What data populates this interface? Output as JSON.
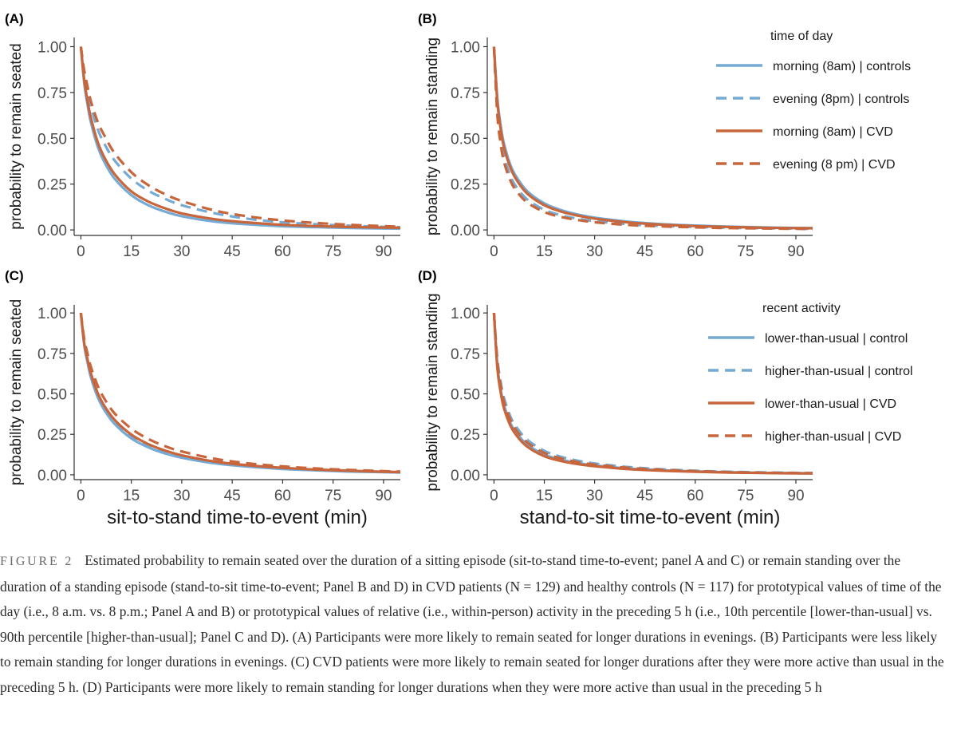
{
  "figure_label": "FIGURE 2",
  "caption": "Estimated probability to remain seated over the duration of a sitting episode (sit-to-stand time-to-event; panel A and C) or remain standing over the duration of a standing episode (stand-to-sit time-to-event; Panel B and D) in CVD patients (N = 129) and healthy controls (N = 117) for prototypical values of time of the day (i.e., 8 a.m. vs. 8 p.m.; Panel A and B) or prototypical values of relative (i.e., within-person) activity in the preceding 5 h (i.e., 10th percentile [lower-than-usual] vs. 90th percentile [higher-than-usual]; Panel C and D). (A) Participants were more likely to remain seated for longer durations in evenings. (B) Participants were less likely to remain standing for longer durations in evenings. (C) CVD patients were more likely to remain seated for longer durations after they were more active than usual in the preceding 5 h. (D) Participants were more likely to remain standing for longer durations when they were more active than usual in the preceding 5 h",
  "colors": {
    "controls": "#74aad3",
    "cvd": "#c8653a"
  },
  "chart_data": [
    {
      "panel": "(A)",
      "type": "line",
      "ylabel": "probability to remain seated",
      "xlabel": "",
      "xlim": [
        -2,
        95
      ],
      "ylim": [
        -0.03,
        1.05
      ],
      "xticks": [
        "0",
        "15",
        "30",
        "45",
        "60",
        "75",
        "90"
      ],
      "yticks": [
        "0.00",
        "0.25",
        "0.50",
        "0.75",
        "1.00"
      ],
      "legend": {
        "title": "time of day",
        "position": "top-right"
      },
      "series": [
        {
          "name": "morning (8am) | controls",
          "color": "#74aad3",
          "dash": "solid",
          "x": [
            0,
            1,
            2,
            3,
            5,
            7,
            10,
            15,
            20,
            25,
            30,
            40,
            50,
            60,
            70,
            80,
            90,
            95
          ],
          "y": [
            1.0,
            0.8,
            0.68,
            0.585,
            0.455,
            0.37,
            0.28,
            0.19,
            0.135,
            0.1,
            0.075,
            0.045,
            0.03,
            0.02,
            0.015,
            0.011,
            0.008,
            0.007
          ]
        },
        {
          "name": "evening (8pm) | controls",
          "color": "#74aad3",
          "dash": "dashed",
          "x": [
            0,
            1,
            2,
            3,
            5,
            7,
            10,
            15,
            20,
            25,
            30,
            40,
            50,
            60,
            70,
            80,
            90,
            95
          ],
          "y": [
            1.0,
            0.85,
            0.75,
            0.67,
            0.55,
            0.47,
            0.38,
            0.28,
            0.215,
            0.17,
            0.135,
            0.09,
            0.06,
            0.042,
            0.031,
            0.023,
            0.017,
            0.015
          ]
        },
        {
          "name": "morning (8am) | CVD",
          "color": "#c8653a",
          "dash": "solid",
          "x": [
            0,
            1,
            2,
            3,
            5,
            7,
            10,
            15,
            20,
            25,
            30,
            40,
            50,
            60,
            70,
            80,
            90,
            95
          ],
          "y": [
            1.0,
            0.82,
            0.7,
            0.61,
            0.48,
            0.395,
            0.305,
            0.21,
            0.155,
            0.118,
            0.09,
            0.058,
            0.04,
            0.028,
            0.021,
            0.016,
            0.013,
            0.012
          ]
        },
        {
          "name": "evening (8 pm) | CVD",
          "color": "#c8653a",
          "dash": "dashed",
          "x": [
            0,
            1,
            2,
            3,
            5,
            7,
            10,
            15,
            20,
            25,
            30,
            40,
            50,
            60,
            70,
            80,
            90,
            95
          ],
          "y": [
            1.0,
            0.87,
            0.78,
            0.7,
            0.59,
            0.515,
            0.42,
            0.315,
            0.245,
            0.195,
            0.158,
            0.105,
            0.073,
            0.052,
            0.038,
            0.028,
            0.021,
            0.018
          ]
        }
      ]
    },
    {
      "panel": "(B)",
      "type": "line",
      "ylabel": "probability to remain standing",
      "xlabel": "",
      "xlim": [
        -2,
        95
      ],
      "ylim": [
        -0.03,
        1.05
      ],
      "xticks": [
        "0",
        "15",
        "30",
        "45",
        "60",
        "75",
        "90"
      ],
      "yticks": [
        "0.00",
        "0.25",
        "0.50",
        "0.75",
        "1.00"
      ],
      "legend": null,
      "series": [
        {
          "name": "morning (8am) | controls",
          "color": "#74aad3",
          "dash": "solid",
          "x": [
            0,
            1,
            2,
            3,
            5,
            7,
            10,
            15,
            20,
            25,
            30,
            40,
            50,
            60,
            70,
            80,
            90,
            95
          ],
          "y": [
            1.0,
            0.72,
            0.57,
            0.47,
            0.35,
            0.28,
            0.21,
            0.145,
            0.108,
            0.084,
            0.067,
            0.045,
            0.032,
            0.024,
            0.018,
            0.014,
            0.011,
            0.01
          ]
        },
        {
          "name": "evening (8pm) | controls",
          "color": "#74aad3",
          "dash": "dashed",
          "x": [
            0,
            1,
            2,
            3,
            5,
            7,
            10,
            15,
            20,
            25,
            30,
            40,
            50,
            60,
            70,
            80,
            90,
            95
          ],
          "y": [
            1.0,
            0.66,
            0.5,
            0.4,
            0.29,
            0.225,
            0.165,
            0.11,
            0.08,
            0.061,
            0.048,
            0.031,
            0.022,
            0.016,
            0.012,
            0.009,
            0.007,
            0.006
          ]
        },
        {
          "name": "morning (8am) | CVD",
          "color": "#c8653a",
          "dash": "solid",
          "x": [
            0,
            1,
            2,
            3,
            5,
            7,
            10,
            15,
            20,
            25,
            30,
            40,
            50,
            60,
            70,
            80,
            90,
            95
          ],
          "y": [
            1.0,
            0.7,
            0.55,
            0.45,
            0.335,
            0.265,
            0.197,
            0.135,
            0.1,
            0.078,
            0.062,
            0.041,
            0.029,
            0.021,
            0.016,
            0.012,
            0.01,
            0.009
          ]
        },
        {
          "name": "evening (8 pm) | CVD",
          "color": "#c8653a",
          "dash": "dashed",
          "x": [
            0,
            1,
            2,
            3,
            5,
            7,
            10,
            15,
            20,
            25,
            30,
            40,
            50,
            60,
            70,
            80,
            90,
            95
          ],
          "y": [
            1.0,
            0.63,
            0.47,
            0.37,
            0.265,
            0.205,
            0.148,
            0.098,
            0.071,
            0.054,
            0.042,
            0.027,
            0.019,
            0.014,
            0.01,
            0.008,
            0.006,
            0.005
          ]
        }
      ]
    },
    {
      "panel": "(C)",
      "type": "line",
      "ylabel": "probability to remain seated",
      "xlabel": "sit-to-stand time-to-event (min)",
      "xlim": [
        -2,
        95
      ],
      "ylim": [
        -0.03,
        1.05
      ],
      "xticks": [
        "0",
        "15",
        "30",
        "45",
        "60",
        "75",
        "90"
      ],
      "yticks": [
        "0.00",
        "0.25",
        "0.50",
        "0.75",
        "1.00"
      ],
      "legend": null,
      "series": [
        {
          "name": "lower-than-usual | control",
          "color": "#74aad3",
          "dash": "solid",
          "x": [
            0,
            1,
            2,
            3,
            5,
            7,
            10,
            15,
            20,
            25,
            30,
            40,
            50,
            60,
            70,
            80,
            90,
            95
          ],
          "y": [
            1.0,
            0.8,
            0.69,
            0.6,
            0.48,
            0.4,
            0.315,
            0.225,
            0.17,
            0.132,
            0.105,
            0.07,
            0.05,
            0.036,
            0.027,
            0.02,
            0.016,
            0.014
          ]
        },
        {
          "name": "higher-than-usual | control",
          "color": "#74aad3",
          "dash": "dashed",
          "x": [
            0,
            1,
            2,
            3,
            5,
            7,
            10,
            15,
            20,
            25,
            30,
            40,
            50,
            60,
            70,
            80,
            90,
            95
          ],
          "y": [
            1.0,
            0.81,
            0.7,
            0.615,
            0.495,
            0.415,
            0.33,
            0.24,
            0.182,
            0.143,
            0.115,
            0.077,
            0.055,
            0.04,
            0.03,
            0.023,
            0.018,
            0.016
          ]
        },
        {
          "name": "lower-than-usual | CVD",
          "color": "#c8653a",
          "dash": "solid",
          "x": [
            0,
            1,
            2,
            3,
            5,
            7,
            10,
            15,
            20,
            25,
            30,
            40,
            50,
            60,
            70,
            80,
            90,
            95
          ],
          "y": [
            1.0,
            0.815,
            0.71,
            0.625,
            0.505,
            0.425,
            0.34,
            0.248,
            0.19,
            0.15,
            0.12,
            0.081,
            0.058,
            0.043,
            0.032,
            0.025,
            0.019,
            0.017
          ]
        },
        {
          "name": "higher-than-usual | CVD",
          "color": "#c8653a",
          "dash": "dashed",
          "x": [
            0,
            1,
            2,
            3,
            5,
            7,
            10,
            15,
            20,
            25,
            30,
            40,
            50,
            60,
            70,
            80,
            90,
            95
          ],
          "y": [
            1.0,
            0.84,
            0.745,
            0.665,
            0.55,
            0.47,
            0.38,
            0.285,
            0.222,
            0.177,
            0.144,
            0.098,
            0.07,
            0.052,
            0.039,
            0.03,
            0.023,
            0.02
          ]
        }
      ]
    },
    {
      "panel": "(D)",
      "type": "line",
      "ylabel": "probability to remain standing",
      "xlabel": "stand-to-sit time-to-event (min)",
      "xlim": [
        -2,
        95
      ],
      "ylim": [
        -0.03,
        1.05
      ],
      "xticks": [
        "0",
        "15",
        "30",
        "45",
        "60",
        "75",
        "90"
      ],
      "yticks": [
        "0.00",
        "0.25",
        "0.50",
        "0.75",
        "1.00"
      ],
      "legend": {
        "title": "recent activity",
        "position": "top-right"
      },
      "series": [
        {
          "name": "lower-than-usual | control",
          "color": "#74aad3",
          "dash": "solid",
          "x": [
            0,
            1,
            2,
            3,
            5,
            7,
            10,
            15,
            20,
            25,
            30,
            40,
            50,
            60,
            70,
            80,
            90,
            95
          ],
          "y": [
            1.0,
            0.68,
            0.53,
            0.43,
            0.315,
            0.25,
            0.185,
            0.125,
            0.093,
            0.072,
            0.058,
            0.039,
            0.028,
            0.021,
            0.016,
            0.012,
            0.01,
            0.009
          ]
        },
        {
          "name": "higher-than-usual | control",
          "color": "#74aad3",
          "dash": "dashed",
          "x": [
            0,
            1,
            2,
            3,
            5,
            7,
            10,
            15,
            20,
            25,
            30,
            40,
            50,
            60,
            70,
            80,
            90,
            95
          ],
          "y": [
            1.0,
            0.72,
            0.575,
            0.475,
            0.355,
            0.285,
            0.215,
            0.148,
            0.111,
            0.087,
            0.07,
            0.048,
            0.034,
            0.025,
            0.019,
            0.015,
            0.012,
            0.011
          ]
        },
        {
          "name": "lower-than-usual | CVD",
          "color": "#c8653a",
          "dash": "solid",
          "x": [
            0,
            1,
            2,
            3,
            5,
            7,
            10,
            15,
            20,
            25,
            30,
            40,
            50,
            60,
            70,
            80,
            90,
            95
          ],
          "y": [
            1.0,
            0.66,
            0.51,
            0.41,
            0.3,
            0.235,
            0.172,
            0.115,
            0.085,
            0.066,
            0.053,
            0.035,
            0.025,
            0.019,
            0.014,
            0.011,
            0.009,
            0.008
          ]
        },
        {
          "name": "higher-than-usual | CVD",
          "color": "#c8653a",
          "dash": "dashed",
          "x": [
            0,
            1,
            2,
            3,
            5,
            7,
            10,
            15,
            20,
            25,
            30,
            40,
            50,
            60,
            70,
            80,
            90,
            95
          ],
          "y": [
            1.0,
            0.7,
            0.55,
            0.45,
            0.335,
            0.265,
            0.198,
            0.135,
            0.101,
            0.078,
            0.063,
            0.043,
            0.031,
            0.023,
            0.017,
            0.013,
            0.011,
            0.01
          ]
        }
      ]
    }
  ]
}
